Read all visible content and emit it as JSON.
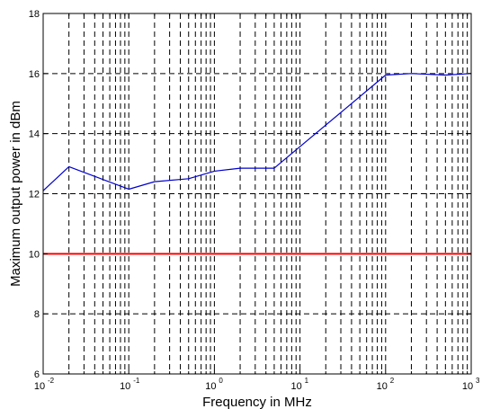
{
  "chart_data": {
    "type": "line",
    "title": "",
    "xlabel": "Frequency in MHz",
    "ylabel": "Maximum output power in dBm",
    "xscale": "log",
    "xlim": [
      0.01,
      1000
    ],
    "ylim": [
      6,
      18
    ],
    "grid": "dashed, major and minor on x, major on y",
    "x_tick_labels": [
      {
        "value": 0.01,
        "base": "10",
        "exp": "-2"
      },
      {
        "value": 0.1,
        "base": "10",
        "exp": "-1"
      },
      {
        "value": 1,
        "base": "10",
        "exp": "0"
      },
      {
        "value": 10,
        "base": "10",
        "exp": "1"
      },
      {
        "value": 100,
        "base": "10",
        "exp": "2"
      },
      {
        "value": 1000,
        "base": "10",
        "exp": "3"
      }
    ],
    "y_ticks": [
      6,
      8,
      10,
      12,
      14,
      16,
      18
    ],
    "series": [
      {
        "color": "#0000cc",
        "x": [
          0.01,
          0.02,
          0.1,
          0.2,
          0.5,
          1,
          2,
          5,
          100,
          200,
          500,
          1000
        ],
        "y": [
          12.1,
          12.9,
          12.15,
          12.4,
          12.5,
          12.75,
          12.85,
          12.85,
          15.95,
          16.0,
          15.95,
          16.0
        ]
      },
      {
        "color": "#ff0000",
        "x": [
          0.01,
          1000
        ],
        "y": [
          10,
          10
        ]
      }
    ]
  }
}
